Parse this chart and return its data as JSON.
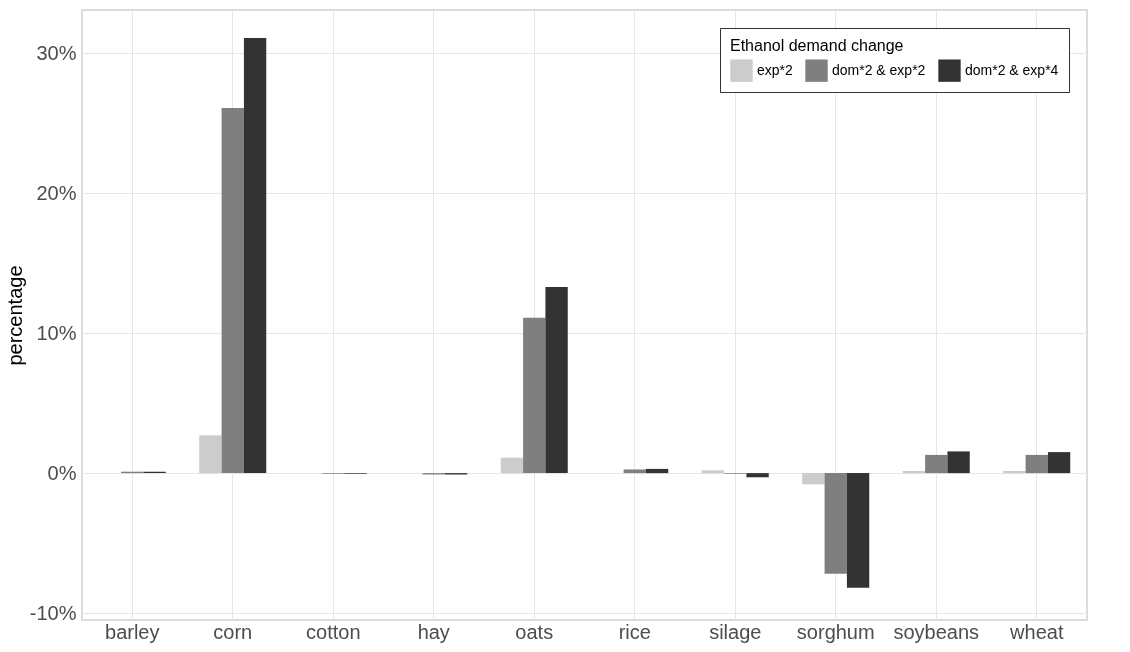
{
  "chart_data": {
    "type": "bar",
    "ylabel": "percentage",
    "legend_title": "Ethanol demand change",
    "categories": [
      "barley",
      "corn",
      "cotton",
      "hay",
      "oats",
      "rice",
      "silage",
      "sorghum",
      "soybeans",
      "wheat"
    ],
    "series": [
      {
        "name": "exp*2",
        "color": "#cccccc",
        "values": [
          null,
          2.7,
          0,
          null,
          1.1,
          null,
          0.2,
          -0.8,
          0.15,
          0.15
        ]
      },
      {
        "name": "dom*2 & exp*2",
        "color": "#7f7f7f",
        "values": [
          0.1,
          26.1,
          -0.05,
          -0.1,
          11.1,
          0.26,
          -0.05,
          -7.2,
          1.3,
          1.3
        ]
      },
      {
        "name": "dom*2 & exp*4",
        "color": "#333333",
        "values": [
          0.1,
          31.1,
          -0.05,
          -0.1,
          13.3,
          0.3,
          -0.3,
          -8.2,
          1.55,
          1.5
        ]
      }
    ],
    "ylim": [
      -10.5,
      33.1
    ],
    "yticks": [
      {
        "value": -10,
        "label": "-10%"
      },
      {
        "value": 0,
        "label": "0%"
      },
      {
        "value": 10,
        "label": "10%"
      },
      {
        "value": 20,
        "label": "20%"
      },
      {
        "value": 30,
        "label": "30%"
      }
    ],
    "grid": true,
    "legend": "top right"
  }
}
